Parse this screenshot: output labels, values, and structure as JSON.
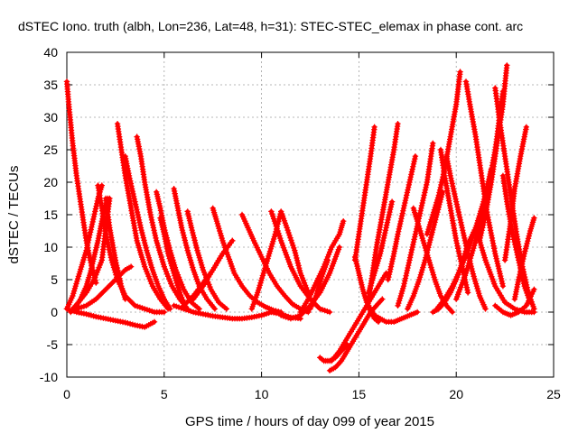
{
  "chart_data": {
    "type": "scatter",
    "title": "dSTEC Iono. truth (albh, Lon=236, Lat=48, h=31): STEC-STEC_elemax in phase cont. arc",
    "xlabel": "GPS time / hours of day 099 of year 2015",
    "ylabel": "dSTEC  / TECUs",
    "xlim": [
      0,
      25
    ],
    "ylim": [
      -10,
      40
    ],
    "xticks": [
      0,
      5,
      10,
      15,
      20,
      25
    ],
    "yticks": [
      -10,
      -5,
      0,
      5,
      10,
      15,
      20,
      25,
      30,
      35,
      40
    ],
    "grid": true,
    "marker": "plus",
    "color": "#ff0000",
    "series": [
      {
        "x": [
          0.0,
          0.1,
          0.3,
          0.5,
          0.8,
          1.0,
          1.2,
          1.5
        ],
        "y": [
          35.5,
          32,
          26,
          21,
          15,
          11,
          8,
          4.5
        ]
      },
      {
        "x": [
          0.0,
          0.5,
          1.0,
          1.5,
          2.0,
          2.5,
          3.0,
          3.5,
          4.0,
          4.5
        ],
        "y": [
          0.5,
          0.0,
          -0.3,
          -0.7,
          -1.0,
          -1.3,
          -1.6,
          -2.0,
          -2.3,
          -1.5
        ]
      },
      {
        "x": [
          0.0,
          0.3,
          0.6,
          1.0,
          1.3,
          1.6,
          1.8
        ],
        "y": [
          0.5,
          2.5,
          5.5,
          9.5,
          13.5,
          17.5,
          19.5
        ]
      },
      {
        "x": [
          0.2,
          0.4,
          0.7,
          1.0,
          1.2,
          1.4,
          1.6,
          1.8,
          2.0,
          2.1
        ],
        "y": [
          0.0,
          0.5,
          2.0,
          4.0,
          6.0,
          8.5,
          11,
          14,
          16.5,
          17.5
        ]
      },
      {
        "x": [
          0.3,
          0.6,
          1.0,
          1.4,
          1.8,
          2.2
        ],
        "y": [
          0.5,
          1.5,
          3.0,
          5.0,
          8.0,
          17.5
        ]
      },
      {
        "x": [
          0.5,
          1.0,
          1.5,
          2.0,
          2.5,
          3.0,
          3.3
        ],
        "y": [
          0.5,
          1.0,
          2.0,
          3.5,
          5.0,
          6.5,
          7.0
        ]
      },
      {
        "x": [
          2.0,
          2.2,
          2.5,
          2.8,
          3.0
        ],
        "y": [
          17.5,
          13,
          8,
          4,
          2
        ]
      },
      {
        "x": [
          1.6,
          1.8,
          2.0,
          2.3,
          2.6,
          3.0,
          3.5,
          4.0,
          4.5,
          5.0
        ],
        "y": [
          19.5,
          16,
          12,
          8,
          5,
          2.5,
          1.0,
          0.5,
          0.0,
          0.0
        ]
      },
      {
        "x": [
          2.6,
          2.8,
          3.0,
          3.3,
          3.6,
          4.0,
          4.4,
          4.8,
          5.2
        ],
        "y": [
          29.0,
          25,
          21,
          16,
          11,
          7,
          4,
          2,
          0.5
        ]
      },
      {
        "x": [
          3.0,
          3.2,
          3.5,
          3.8,
          4.1,
          4.4,
          4.7,
          5.0,
          5.3
        ],
        "y": [
          24.0,
          21,
          17,
          13,
          9.5,
          6.5,
          4,
          2,
          0.5
        ]
      },
      {
        "x": [
          3.6,
          3.8,
          4.0,
          4.3,
          4.6,
          5.0,
          5.4,
          5.8,
          6.2
        ],
        "y": [
          27.0,
          24,
          20,
          15,
          11,
          7,
          4,
          2,
          0.5
        ]
      },
      {
        "x": [
          4.6,
          4.8,
          5.0,
          5.3,
          5.6,
          6.0,
          6.4,
          6.8
        ],
        "y": [
          18.5,
          16,
          13,
          9.5,
          6.5,
          3.5,
          1.5,
          0.5
        ]
      },
      {
        "x": [
          5.5,
          5.7,
          5.9,
          6.2,
          6.5,
          6.8,
          7.2,
          7.6
        ],
        "y": [
          19.0,
          16,
          13,
          9.5,
          6.5,
          4.0,
          2.0,
          0.5
        ]
      },
      {
        "x": [
          4.8,
          5.0,
          5.2,
          5.5,
          5.8,
          6.0
        ],
        "y": [
          14.5,
          12,
          9,
          6,
          3,
          1.5
        ]
      },
      {
        "x": [
          6.2,
          6.4,
          6.7,
          7.0,
          7.4,
          7.8,
          8.2
        ],
        "y": [
          15.5,
          13,
          9.5,
          6.5,
          3.5,
          1.5,
          0.5
        ]
      },
      {
        "x": [
          5.5,
          6.0,
          6.5,
          7.0,
          7.5,
          8.0,
          8.5,
          9.0,
          9.5,
          10.0,
          10.5,
          11.0,
          11.5,
          12.0
        ],
        "y": [
          1.0,
          0.5,
          0.0,
          -0.3,
          -0.6,
          -0.8,
          -1.0,
          -1.0,
          -0.8,
          -0.5,
          0.0,
          -0.3,
          -0.8,
          -1.0
        ]
      },
      {
        "x": [
          7.5,
          7.7,
          8.0,
          8.3,
          8.6,
          9.0,
          9.4,
          9.8,
          10.2,
          10.6,
          11.0
        ],
        "y": [
          16.0,
          14,
          11,
          8.5,
          6,
          4,
          2.5,
          1.5,
          0.8,
          0.3,
          0.0
        ]
      },
      {
        "x": [
          6.0,
          6.5,
          7.0,
          7.5,
          8.0,
          8.5
        ],
        "y": [
          1.0,
          2.5,
          4.5,
          6.5,
          9.0,
          11.0
        ]
      },
      {
        "x": [
          6.5,
          7.0,
          7.5,
          8.0,
          8.5
        ],
        "y": [
          2.0,
          4.0,
          6.5,
          9.0,
          11.0
        ]
      },
      {
        "x": [
          9.0,
          9.3,
          9.6,
          10.0,
          10.4,
          10.8,
          11.2,
          11.6,
          12.0,
          12.4
        ],
        "y": [
          15.0,
          13,
          11,
          8.5,
          6,
          4,
          2.5,
          1.2,
          0.5,
          0.0
        ]
      },
      {
        "x": [
          9.5,
          9.8,
          10.1,
          10.4,
          10.7,
          11.0,
          11.3,
          11.7,
          12.0,
          12.4
        ],
        "y": [
          0.5,
          3.0,
          6.0,
          9.0,
          12,
          15.5,
          13,
          9.5,
          6,
          3
        ]
      },
      {
        "x": [
          10.5,
          11.0,
          11.5,
          12.0,
          12.5,
          13.0,
          13.5
        ],
        "y": [
          15.5,
          11,
          7,
          4,
          2,
          0.5,
          0.0
        ]
      },
      {
        "x": [
          11.0,
          11.5,
          12.0,
          12.5,
          13.0,
          13.5,
          14.0
        ],
        "y": [
          -0.5,
          -1.0,
          -0.5,
          1.0,
          3.0,
          6.0,
          10.0
        ]
      },
      {
        "x": [
          12.0,
          12.4,
          12.8,
          13.2,
          13.6,
          14.0,
          14.2
        ],
        "y": [
          0.0,
          2.0,
          4.5,
          7.0,
          10.0,
          12.0,
          14.0
        ]
      },
      {
        "x": [
          12.5,
          12.8,
          13.1,
          13.4
        ],
        "y": [
          0.5,
          2.5,
          5.5,
          8.0
        ]
      },
      {
        "x": [
          13.0,
          13.2,
          13.5,
          13.8,
          14.1,
          14.4
        ],
        "y": [
          -7.0,
          -7.5,
          -7.5,
          -7.0,
          -6.0,
          -5.0
        ]
      },
      {
        "x": [
          13.5,
          13.8,
          14.1,
          14.4,
          14.7,
          15.0,
          15.3,
          15.6,
          15.9,
          16.2
        ],
        "y": [
          -9.0,
          -8.5,
          -7.5,
          -6.0,
          -4.5,
          -3.0,
          -1.5,
          0.0,
          1.0,
          2.0
        ]
      },
      {
        "x": [
          13.6,
          14.0,
          14.4,
          14.8,
          15.2,
          15.6,
          16.0,
          16.4
        ],
        "y": [
          -7.5,
          -6.0,
          -4.0,
          -2.0,
          0.0,
          2.0,
          4.0,
          6.0
        ]
      },
      {
        "x": [
          14.8,
          15.0,
          15.2,
          15.4,
          15.6,
          15.8,
          16.0
        ],
        "y": [
          8.5,
          6,
          3.5,
          1.5,
          0.0,
          -1.0,
          -1.5
        ]
      },
      {
        "x": [
          14.8,
          15.0,
          15.2,
          15.4,
          15.6,
          15.8
        ],
        "y": [
          8.0,
          12,
          16,
          20,
          24,
          28.5
        ]
      },
      {
        "x": [
          15.5,
          15.8,
          16.1,
          16.4,
          16.8,
          17.2,
          17.6,
          18.0
        ],
        "y": [
          1.0,
          -0.5,
          -1.0,
          -1.5,
          -1.5,
          -1.0,
          -0.5,
          0.0
        ]
      },
      {
        "x": [
          15.5,
          15.7,
          15.9,
          16.2,
          16.5,
          16.8,
          17.0
        ],
        "y": [
          2.0,
          6.0,
          10.0,
          15.0,
          20.0,
          25.0,
          29.0
        ]
      },
      {
        "x": [
          15.5,
          15.8,
          16.1,
          16.4,
          16.7
        ],
        "y": [
          3.0,
          6.0,
          9.0,
          13.0,
          17.0
        ]
      },
      {
        "x": [
          16.5,
          16.8,
          17.0,
          17.3,
          17.6,
          17.9
        ],
        "y": [
          5.0,
          9.0,
          12.0,
          16.0,
          20.0,
          24.0
        ]
      },
      {
        "x": [
          17.0,
          17.3,
          17.6,
          17.9,
          18.2,
          18.5,
          18.8
        ],
        "y": [
          1.0,
          4.0,
          8.0,
          12.0,
          16.0,
          20.0,
          26.0
        ]
      },
      {
        "x": [
          17.5,
          17.8,
          18.1,
          18.4,
          18.7,
          19.0,
          19.3
        ],
        "y": [
          0.5,
          2.5,
          5.0,
          8.0,
          11.5,
          15.0,
          18.5
        ]
      },
      {
        "x": [
          17.8,
          18.0,
          18.3,
          18.6,
          18.9,
          19.2,
          19.5,
          19.8
        ],
        "y": [
          16.0,
          14.0,
          11.0,
          8.0,
          5.0,
          2.5,
          1.0,
          0.0
        ]
      },
      {
        "x": [
          18.5,
          18.8,
          19.1,
          19.4,
          19.7,
          20.0,
          20.2
        ],
        "y": [
          12.0,
          15.0,
          18.0,
          22.0,
          27.0,
          32.0,
          37.0
        ]
      },
      {
        "x": [
          19.2,
          19.4,
          19.7,
          20.0,
          20.3,
          20.6
        ],
        "y": [
          25.0,
          21,
          16,
          11,
          7,
          3
        ]
      },
      {
        "x": [
          18.8,
          19.1,
          19.4,
          19.7,
          20.0,
          20.3,
          20.6,
          21.0,
          21.5,
          22.0,
          22.5,
          23.0,
          23.5,
          24.0
        ],
        "y": [
          0.0,
          0.5,
          1.5,
          3.0,
          5.0,
          7.5,
          10.5,
          13.0,
          8.0,
          4.0,
          1.5,
          0.5,
          0.0,
          0.0
        ]
      },
      {
        "x": [
          19.5,
          19.7,
          20.0,
          20.3,
          20.6,
          20.9,
          21.2,
          21.5
        ],
        "y": [
          24.0,
          21.0,
          17.0,
          13.0,
          9.0,
          5.5,
          2.5,
          0.5
        ]
      },
      {
        "x": [
          20.5,
          20.7,
          21.0,
          21.3,
          21.6,
          22.0,
          22.4
        ],
        "y": [
          35.5,
          32,
          27,
          21,
          15,
          9,
          4
        ]
      },
      {
        "x": [
          19.0,
          19.4,
          19.8,
          20.2,
          20.6,
          21.0,
          21.4,
          21.8
        ],
        "y": [
          0.5,
          2.0,
          4.0,
          6.5,
          9.5,
          13.0,
          17.0,
          22.0
        ]
      },
      {
        "x": [
          20.0,
          20.5,
          21.0,
          21.5,
          22.0,
          22.4
        ],
        "y": [
          2.0,
          6.0,
          11.0,
          17.0,
          25.0,
          34.0
        ]
      },
      {
        "x": [
          21.2,
          21.5,
          21.8,
          22.1,
          22.4,
          22.6
        ],
        "y": [
          11.0,
          15.0,
          20.0,
          26.0,
          32.0,
          38.0
        ]
      },
      {
        "x": [
          22.0,
          22.2,
          22.5,
          22.8,
          23.1,
          23.4,
          23.7,
          24.0
        ],
        "y": [
          34.5,
          30,
          24,
          18,
          12,
          7,
          3,
          0.5
        ]
      },
      {
        "x": [
          22.4,
          22.6,
          22.9,
          23.2,
          23.5,
          23.8
        ],
        "y": [
          21.0,
          17,
          12,
          8,
          4,
          1.5
        ]
      },
      {
        "x": [
          22.5,
          22.8,
          23.0,
          23.3,
          23.6
        ],
        "y": [
          8.0,
          14.0,
          19.0,
          24.0,
          28.5
        ]
      },
      {
        "x": [
          22.0,
          22.4,
          22.8,
          23.2,
          23.6,
          24.0
        ],
        "y": [
          1.0,
          0.0,
          -0.5,
          0.0,
          1.0,
          3.5
        ]
      },
      {
        "x": [
          23.0,
          23.2,
          23.5,
          23.8,
          24.0
        ],
        "y": [
          2.0,
          5.0,
          9.0,
          12.5,
          14.5
        ]
      }
    ]
  }
}
